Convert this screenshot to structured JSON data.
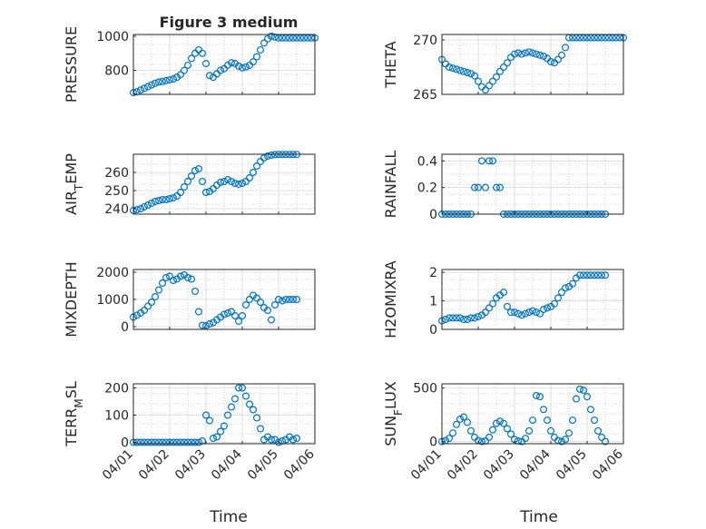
{
  "title": "Figure 3 medium",
  "xlabel": "Time",
  "x_ticks": [
    "04/01",
    "04/02",
    "04/03",
    "04/04",
    "04/05",
    "04/06"
  ],
  "colors": {
    "marker": "#0072BD",
    "axis": "#262626",
    "grid": "#b0b0b0"
  },
  "chart_data": [
    {
      "type": "scatter",
      "ylabel": "PRESSURE",
      "ylim": [
        660,
        1010
      ],
      "yticks": [
        800,
        1000
      ],
      "xlim": [
        0,
        5
      ],
      "x": [
        0,
        0.1,
        0.2,
        0.3,
        0.4,
        0.5,
        0.6,
        0.7,
        0.8,
        0.9,
        1,
        1.1,
        1.2,
        1.3,
        1.4,
        1.5,
        1.6,
        1.7,
        1.8,
        1.9,
        2,
        2.1,
        2.2,
        2.3,
        2.4,
        2.5,
        2.6,
        2.7,
        2.8,
        2.9,
        3,
        3.1,
        3.2,
        3.3,
        3.4,
        3.5,
        3.6,
        3.7,
        3.8,
        3.9,
        4,
        4.1,
        4.2,
        4.3,
        4.4,
        4.5,
        4.6,
        4.7,
        4.8,
        4.9,
        5
      ],
      "values": [
        670,
        675,
        685,
        695,
        705,
        715,
        725,
        732,
        735,
        740,
        745,
        750,
        760,
        775,
        800,
        830,
        870,
        900,
        920,
        900,
        840,
        770,
        760,
        780,
        800,
        810,
        830,
        845,
        840,
        825,
        815,
        820,
        830,
        850,
        880,
        920,
        960,
        985,
        1000,
        995,
        990,
        990,
        990,
        990,
        990,
        990,
        990,
        990,
        990,
        990,
        990
      ]
    },
    {
      "type": "scatter",
      "ylabel": "THETA",
      "ylim": [
        265,
        270.5
      ],
      "yticks": [
        265,
        270
      ],
      "xlim": [
        0,
        5
      ],
      "x": [
        0,
        0.1,
        0.2,
        0.3,
        0.4,
        0.5,
        0.6,
        0.7,
        0.8,
        0.9,
        1,
        1.1,
        1.2,
        1.3,
        1.4,
        1.5,
        1.6,
        1.7,
        1.8,
        1.9,
        2,
        2.1,
        2.2,
        2.3,
        2.4,
        2.5,
        2.6,
        2.7,
        2.8,
        2.9,
        3,
        3.1,
        3.2,
        3.3,
        3.4,
        3.5,
        3.6,
        3.7,
        3.8,
        3.9,
        4,
        4.1,
        4.2,
        4.3,
        4.4,
        4.5,
        4.6,
        4.7,
        4.8,
        4.9,
        5
      ],
      "values": [
        268.2,
        267.8,
        267.5,
        267.4,
        267.3,
        267.2,
        267.1,
        267.0,
        266.9,
        266.7,
        266.2,
        265.7,
        265.4,
        265.8,
        266.2,
        266.6,
        267.1,
        267.5,
        267.9,
        268.4,
        268.7,
        268.8,
        268.7,
        268.8,
        268.9,
        268.8,
        268.7,
        268.6,
        268.5,
        268.3,
        268.0,
        267.9,
        268.2,
        268.6,
        269.3,
        270.2,
        270.2,
        270.2,
        270.2,
        270.2,
        270.2,
        270.2,
        270.2,
        270.2,
        270.2,
        270.2,
        270.2,
        270.2,
        270.2,
        270.2,
        270.2
      ]
    },
    {
      "type": "scatter",
      "ylabel": "AIR_TEMP",
      "ylim": [
        237,
        270
      ],
      "yticks": [
        240,
        250,
        260
      ],
      "xlim": [
        0,
        5
      ],
      "x": [
        0,
        0.1,
        0.2,
        0.3,
        0.4,
        0.5,
        0.6,
        0.7,
        0.8,
        0.9,
        1,
        1.1,
        1.2,
        1.3,
        1.4,
        1.5,
        1.6,
        1.7,
        1.8,
        1.9,
        2,
        2.1,
        2.2,
        2.3,
        2.4,
        2.5,
        2.6,
        2.7,
        2.8,
        2.9,
        3,
        3.1,
        3.2,
        3.3,
        3.4,
        3.5,
        3.6,
        3.7,
        3.8,
        3.9,
        4,
        4.1,
        4.2,
        4.3,
        4.4,
        4.5
      ],
      "values": [
        239,
        239.5,
        240,
        241,
        242,
        243,
        244,
        244.5,
        245,
        245,
        245.5,
        246,
        247,
        249,
        252,
        255,
        258,
        261,
        262,
        255,
        249,
        249.5,
        251,
        253,
        254.5,
        255,
        256,
        255,
        254,
        253.5,
        254,
        255,
        257,
        260,
        263.5,
        266,
        268,
        269,
        269.5,
        269.8,
        269.9,
        269.9,
        269.9,
        269.9,
        269.9,
        269.9
      ]
    },
    {
      "type": "scatter",
      "ylabel": "RAINFALL",
      "ylim": [
        0,
        0.45
      ],
      "yticks": [
        0,
        0.2,
        0.4
      ],
      "xlim": [
        0,
        5
      ],
      "x": [
        0,
        0.1,
        0.2,
        0.3,
        0.4,
        0.5,
        0.6,
        0.7,
        0.8,
        0.9,
        1,
        1.1,
        1.2,
        1.3,
        1.4,
        1.5,
        1.6,
        1.7,
        1.8,
        1.9,
        2,
        2.1,
        2.2,
        2.3,
        2.4,
        2.5,
        2.6,
        2.7,
        2.8,
        2.9,
        3,
        3.1,
        3.2,
        3.3,
        3.4,
        3.5,
        3.6,
        3.7,
        3.8,
        3.9,
        4,
        4.1,
        4.2,
        4.3,
        4.4,
        4.5
      ],
      "values": [
        0,
        0,
        0,
        0,
        0,
        0,
        0,
        0,
        0,
        0.2,
        0.2,
        0.4,
        0.2,
        0.4,
        0.4,
        0.2,
        0.2,
        0,
        0,
        0,
        0,
        0,
        0,
        0,
        0,
        0,
        0,
        0,
        0,
        0,
        0,
        0,
        0,
        0,
        0,
        0,
        0,
        0,
        0,
        0,
        0,
        0,
        0,
        0,
        0,
        0
      ]
    },
    {
      "type": "scatter",
      "ylabel": "MIXDEPTH",
      "ylim": [
        -100,
        2100
      ],
      "yticks": [
        0,
        1000,
        2000
      ],
      "xlim": [
        0,
        5
      ],
      "x": [
        0,
        0.1,
        0.2,
        0.3,
        0.4,
        0.5,
        0.6,
        0.7,
        0.8,
        0.9,
        1,
        1.1,
        1.2,
        1.3,
        1.4,
        1.5,
        1.6,
        1.7,
        1.8,
        1.9,
        2,
        2.1,
        2.2,
        2.3,
        2.4,
        2.5,
        2.6,
        2.7,
        2.8,
        2.9,
        3,
        3.1,
        3.2,
        3.3,
        3.4,
        3.5,
        3.6,
        3.7,
        3.8,
        3.9,
        4,
        4.1,
        4.2,
        4.3,
        4.4,
        4.5
      ],
      "values": [
        350,
        420,
        500,
        600,
        750,
        900,
        1100,
        1350,
        1600,
        1800,
        1850,
        1700,
        1750,
        1850,
        1900,
        1800,
        1750,
        1300,
        550,
        50,
        30,
        100,
        150,
        250,
        350,
        450,
        500,
        550,
        400,
        200,
        400,
        800,
        1000,
        1150,
        1050,
        900,
        700,
        600,
        250,
        800,
        1000,
        950,
        1000,
        1000,
        1000,
        1000
      ]
    },
    {
      "type": "scatter",
      "ylabel": "H2OMIXRA",
      "ylim": [
        0,
        2.1
      ],
      "yticks": [
        0,
        1,
        2
      ],
      "xlim": [
        0,
        5
      ],
      "x": [
        0,
        0.1,
        0.2,
        0.3,
        0.4,
        0.5,
        0.6,
        0.7,
        0.8,
        0.9,
        1,
        1.1,
        1.2,
        1.3,
        1.4,
        1.5,
        1.6,
        1.7,
        1.8,
        1.9,
        2,
        2.1,
        2.2,
        2.3,
        2.4,
        2.5,
        2.6,
        2.7,
        2.8,
        2.9,
        3,
        3.1,
        3.2,
        3.3,
        3.4,
        3.5,
        3.6,
        3.7,
        3.8,
        3.9,
        4,
        4.1,
        4.2,
        4.3,
        4.4,
        4.5
      ],
      "values": [
        0.3,
        0.35,
        0.4,
        0.4,
        0.4,
        0.4,
        0.35,
        0.35,
        0.4,
        0.4,
        0.45,
        0.5,
        0.6,
        0.75,
        0.9,
        1.1,
        1.2,
        1.3,
        0.8,
        0.6,
        0.6,
        0.55,
        0.5,
        0.55,
        0.6,
        0.65,
        0.6,
        0.55,
        0.7,
        0.75,
        0.8,
        0.9,
        1.1,
        1.3,
        1.45,
        1.5,
        1.6,
        1.8,
        1.9,
        1.9,
        1.9,
        1.9,
        1.9,
        1.9,
        1.9,
        1.9
      ]
    },
    {
      "type": "scatter",
      "ylabel": "TERR_MSL",
      "ylim": [
        -5,
        215
      ],
      "yticks": [
        0,
        100,
        200
      ],
      "xlim": [
        0,
        5
      ],
      "x": [
        0,
        0.1,
        0.2,
        0.3,
        0.4,
        0.5,
        0.6,
        0.7,
        0.8,
        0.9,
        1,
        1.1,
        1.2,
        1.3,
        1.4,
        1.5,
        1.6,
        1.7,
        1.8,
        1.9,
        2,
        2.1,
        2.2,
        2.3,
        2.4,
        2.5,
        2.6,
        2.7,
        2.8,
        2.9,
        3,
        3.1,
        3.2,
        3.3,
        3.4,
        3.5,
        3.6,
        3.7,
        3.8,
        3.9,
        4,
        4.1,
        4.2,
        4.3,
        4.4,
        4.5
      ],
      "values": [
        0,
        0,
        0,
        0,
        0,
        0,
        0,
        0,
        0,
        0,
        0,
        0,
        0,
        0,
        0,
        0,
        0,
        0,
        0,
        5,
        100,
        80,
        15,
        20,
        40,
        60,
        100,
        130,
        160,
        200,
        200,
        170,
        140,
        120,
        90,
        50,
        10,
        20,
        10,
        10,
        0,
        5,
        10,
        20,
        10,
        15
      ]
    },
    {
      "type": "scatter",
      "ylabel": "SUN_FLUX",
      "ylim": [
        -20,
        540
      ],
      "yticks": [
        0,
        500
      ],
      "xlim": [
        0,
        5
      ],
      "x": [
        0,
        0.1,
        0.2,
        0.3,
        0.4,
        0.5,
        0.6,
        0.7,
        0.8,
        0.9,
        1,
        1.1,
        1.2,
        1.3,
        1.4,
        1.5,
        1.6,
        1.7,
        1.8,
        1.9,
        2,
        2.1,
        2.2,
        2.3,
        2.4,
        2.5,
        2.6,
        2.7,
        2.8,
        2.9,
        3,
        3.1,
        3.2,
        3.3,
        3.4,
        3.5,
        3.6,
        3.7,
        3.8,
        3.9,
        4,
        4.1,
        4.2,
        4.3,
        4.4,
        4.5
      ],
      "values": [
        0,
        10,
        30,
        80,
        160,
        210,
        230,
        180,
        100,
        40,
        10,
        0,
        5,
        40,
        110,
        170,
        190,
        170,
        120,
        70,
        20,
        5,
        0,
        30,
        100,
        200,
        430,
        420,
        300,
        200,
        100,
        40,
        10,
        0,
        20,
        80,
        200,
        400,
        490,
        480,
        420,
        300,
        200,
        100,
        40,
        0
      ]
    }
  ]
}
